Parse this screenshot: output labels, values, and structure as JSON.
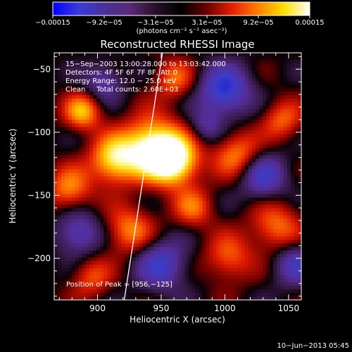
{
  "chart_data": {
    "type": "heatmap",
    "title": "Reconstructed RHESSI Image",
    "xlabel": "Heliocentric X (arcsec)",
    "ylabel": "Heliocentric Y (arcsec)",
    "xlim": [
      866,
      1060
    ],
    "ylim": [
      -233,
      -37
    ],
    "x_ticks": [
      {
        "value": 900,
        "label": "900"
      },
      {
        "value": 950,
        "label": "950"
      },
      {
        "value": 1000,
        "label": "1000"
      },
      {
        "value": 1050,
        "label": "1050"
      }
    ],
    "y_ticks": [
      {
        "value": -50,
        "label": "−50"
      },
      {
        "value": -100,
        "label": "−100"
      },
      {
        "value": -150,
        "label": "−150"
      },
      {
        "value": -200,
        "label": "−200"
      }
    ],
    "colorbar": {
      "min": -0.00015,
      "max": 0.00015,
      "tick_labels": [
        "−0.00015",
        "−9.2e−05",
        "−3.1e−05",
        "3.1e−05",
        "9.2e−05",
        "0.00015"
      ],
      "unit_label": "(photons cm⁻² s⁻¹ asec⁻²)",
      "colors": [
        "#0000ff",
        "#3b3bd8",
        "#4b2f9a",
        "#5a2a78",
        "#281028",
        "#000000",
        "#6a0000",
        "#e82000",
        "#ff8000",
        "#ffe000",
        "#ffffff"
      ]
    },
    "annotations": [
      "15−Sep−2003 13:00:28.000 to 13:03:42.000",
      "Detectors: 4F 5F 6F 7F 8F, Att 0",
      "Energy Range: 12.0 − 25.0 keV",
      "Clean     Total counts: 2.60E+03"
    ],
    "peak_label": "Position of Peak = [956,−125]",
    "peak": {
      "x": 956,
      "y": -125
    },
    "limb_line": [
      [
        921,
        -233
      ],
      [
        951,
        -37
      ]
    ],
    "sources": [
      {
        "x": 943,
        "y": -112,
        "sigma": 16,
        "amp": 1.0
      },
      {
        "x": 960,
        "y": -123,
        "sigma": 13,
        "amp": 1.0
      },
      {
        "x": 913,
        "y": -122,
        "sigma": 13,
        "amp": 0.8
      },
      {
        "x": 888,
        "y": -84,
        "sigma": 10,
        "amp": 0.65
      },
      {
        "x": 878,
        "y": -145,
        "sigma": 12,
        "amp": 0.55
      },
      {
        "x": 925,
        "y": -178,
        "sigma": 13,
        "amp": 0.55
      },
      {
        "x": 1010,
        "y": -118,
        "sigma": 13,
        "amp": 0.55
      },
      {
        "x": 1040,
        "y": -175,
        "sigma": 14,
        "amp": 0.5
      },
      {
        "x": 1003,
        "y": -200,
        "sigma": 13,
        "amp": 0.45
      },
      {
        "x": 960,
        "y": -58,
        "sigma": 11,
        "amp": 0.45
      },
      {
        "x": 1045,
        "y": -90,
        "sigma": 11,
        "amp": 0.45
      },
      {
        "x": 975,
        "y": -160,
        "sigma": 11,
        "amp": 0.45
      },
      {
        "x": 895,
        "y": -215,
        "sigma": 11,
        "amp": 0.4
      },
      {
        "x": 1000,
        "y": -67,
        "sigma": 14,
        "amp": -0.75
      },
      {
        "x": 1030,
        "y": -135,
        "sigma": 13,
        "amp": -0.6
      },
      {
        "x": 950,
        "y": -205,
        "sigma": 14,
        "amp": -0.6
      },
      {
        "x": 885,
        "y": -180,
        "sigma": 12,
        "amp": -0.55
      },
      {
        "x": 1055,
        "y": -205,
        "sigma": 12,
        "amp": -0.5
      },
      {
        "x": 905,
        "y": -60,
        "sigma": 10,
        "amp": -0.45
      },
      {
        "x": 985,
        "y": -95,
        "sigma": 9,
        "amp": -0.35
      }
    ]
  },
  "footer": {
    "timestamp": "10−Jun−2013 05:45"
  }
}
